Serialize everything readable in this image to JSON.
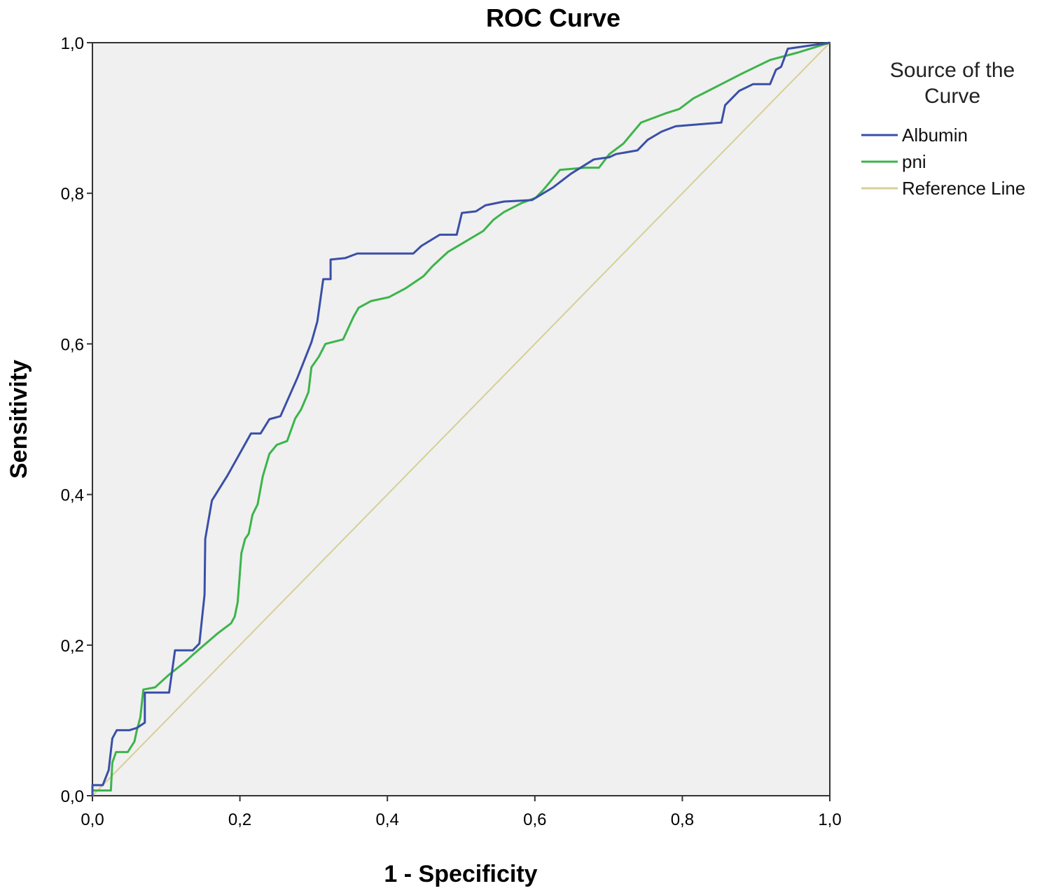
{
  "chart_data": {
    "type": "line",
    "title": "ROC Curve",
    "xlabel": "1 - Specificity",
    "ylabel": "Sensitivity",
    "xlim": [
      0,
      1
    ],
    "ylim": [
      0,
      1
    ],
    "xticks": [
      "0,0",
      "0,2",
      "0,4",
      "0,6",
      "0,8",
      "1,0"
    ],
    "yticks": [
      "0,0",
      "0,2",
      "0,4",
      "0,6",
      "0,8",
      "1,0"
    ],
    "grid": false,
    "plot_background": "#f0f0f0",
    "legend": {
      "title_line1": "Source of the",
      "title_line2": "Curve",
      "placement": "right"
    },
    "series": [
      {
        "name": "Albumin",
        "color": "#3a4fa8",
        "points": [
          [
            0,
            0
          ],
          [
            0,
            0.014
          ],
          [
            0.014,
            0.014
          ],
          [
            0.022,
            0.034
          ],
          [
            0.027,
            0.076
          ],
          [
            0.033,
            0.087
          ],
          [
            0.05,
            0.087
          ],
          [
            0.06,
            0.09
          ],
          [
            0.071,
            0.097
          ],
          [
            0.071,
            0.137
          ],
          [
            0.104,
            0.137
          ],
          [
            0.112,
            0.193
          ],
          [
            0.136,
            0.193
          ],
          [
            0.145,
            0.202
          ],
          [
            0.152,
            0.267
          ],
          [
            0.153,
            0.341
          ],
          [
            0.162,
            0.392
          ],
          [
            0.183,
            0.425
          ],
          [
            0.215,
            0.481
          ],
          [
            0.228,
            0.481
          ],
          [
            0.24,
            0.5
          ],
          [
            0.255,
            0.504
          ],
          [
            0.278,
            0.555
          ],
          [
            0.297,
            0.602
          ],
          [
            0.305,
            0.63
          ],
          [
            0.313,
            0.686
          ],
          [
            0.323,
            0.686
          ],
          [
            0.323,
            0.712
          ],
          [
            0.343,
            0.714
          ],
          [
            0.359,
            0.72
          ],
          [
            0.388,
            0.72
          ],
          [
            0.435,
            0.72
          ],
          [
            0.446,
            0.73
          ],
          [
            0.471,
            0.745
          ],
          [
            0.494,
            0.745
          ],
          [
            0.501,
            0.774
          ],
          [
            0.52,
            0.776
          ],
          [
            0.533,
            0.784
          ],
          [
            0.558,
            0.789
          ],
          [
            0.596,
            0.791
          ],
          [
            0.625,
            0.808
          ],
          [
            0.649,
            0.826
          ],
          [
            0.68,
            0.845
          ],
          [
            0.701,
            0.848
          ],
          [
            0.71,
            0.852
          ],
          [
            0.739,
            0.857
          ],
          [
            0.753,
            0.871
          ],
          [
            0.772,
            0.882
          ],
          [
            0.791,
            0.889
          ],
          [
            0.853,
            0.894
          ],
          [
            0.858,
            0.917
          ],
          [
            0.877,
            0.936
          ],
          [
            0.896,
            0.945
          ],
          [
            0.919,
            0.945
          ],
          [
            0.927,
            0.964
          ],
          [
            0.934,
            0.968
          ],
          [
            0.943,
            0.992
          ],
          [
            0.957,
            0.994
          ],
          [
            1,
            1
          ]
        ]
      },
      {
        "name": "pni",
        "color": "#3cb44b",
        "points": [
          [
            0,
            0
          ],
          [
            0,
            0.007
          ],
          [
            0.025,
            0.007
          ],
          [
            0.027,
            0.044
          ],
          [
            0.032,
            0.058
          ],
          [
            0.048,
            0.058
          ],
          [
            0.057,
            0.072
          ],
          [
            0.06,
            0.086
          ],
          [
            0.065,
            0.104
          ],
          [
            0.069,
            0.141
          ],
          [
            0.085,
            0.144
          ],
          [
            0.103,
            0.16
          ],
          [
            0.126,
            0.178
          ],
          [
            0.136,
            0.187
          ],
          [
            0.169,
            0.215
          ],
          [
            0.188,
            0.229
          ],
          [
            0.193,
            0.238
          ],
          [
            0.197,
            0.257
          ],
          [
            0.202,
            0.322
          ],
          [
            0.207,
            0.341
          ],
          [
            0.212,
            0.348
          ],
          [
            0.217,
            0.373
          ],
          [
            0.224,
            0.387
          ],
          [
            0.231,
            0.424
          ],
          [
            0.24,
            0.454
          ],
          [
            0.25,
            0.466
          ],
          [
            0.264,
            0.471
          ],
          [
            0.275,
            0.501
          ],
          [
            0.283,
            0.513
          ],
          [
            0.293,
            0.536
          ],
          [
            0.297,
            0.569
          ],
          [
            0.307,
            0.583
          ],
          [
            0.316,
            0.6
          ],
          [
            0.34,
            0.606
          ],
          [
            0.354,
            0.636
          ],
          [
            0.361,
            0.648
          ],
          [
            0.378,
            0.657
          ],
          [
            0.402,
            0.662
          ],
          [
            0.425,
            0.674
          ],
          [
            0.449,
            0.69
          ],
          [
            0.461,
            0.703
          ],
          [
            0.482,
            0.722
          ],
          [
            0.506,
            0.736
          ],
          [
            0.53,
            0.75
          ],
          [
            0.544,
            0.765
          ],
          [
            0.558,
            0.775
          ],
          [
            0.582,
            0.787
          ],
          [
            0.601,
            0.794
          ],
          [
            0.611,
            0.804
          ],
          [
            0.634,
            0.831
          ],
          [
            0.668,
            0.834
          ],
          [
            0.687,
            0.834
          ],
          [
            0.701,
            0.852
          ],
          [
            0.72,
            0.866
          ],
          [
            0.744,
            0.894
          ],
          [
            0.777,
            0.906
          ],
          [
            0.796,
            0.912
          ],
          [
            0.815,
            0.926
          ],
          [
            0.853,
            0.945
          ],
          [
            0.881,
            0.959
          ],
          [
            0.919,
            0.977
          ],
          [
            0.957,
            0.987
          ],
          [
            1,
            1
          ]
        ]
      },
      {
        "name": "Reference Line",
        "color": "#d6cf97",
        "points": [
          [
            0,
            0
          ],
          [
            1,
            1
          ]
        ]
      }
    ]
  }
}
